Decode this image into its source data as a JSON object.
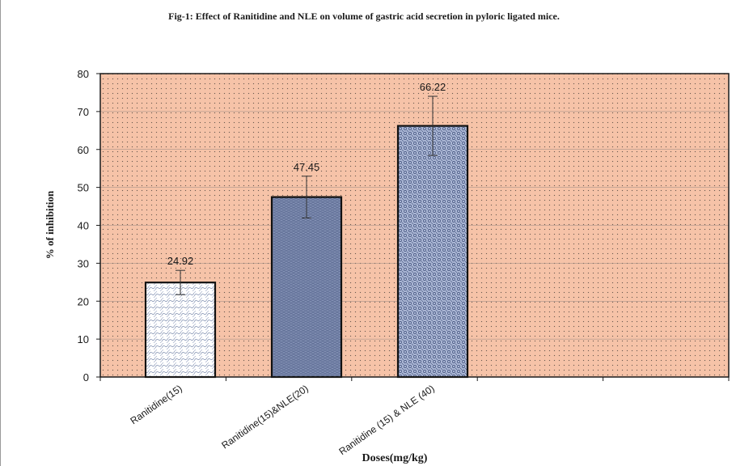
{
  "chart_data": {
    "type": "bar",
    "title": "Fig-1: Effect of Ranitidine and NLE on volume of gastric acid secretion in pyloric ligated mice.",
    "xlabel": "Doses(mg/kg)",
    "ylabel": "% of inhibition",
    "categories": [
      "Ranitidine(15)",
      "Ranitidine(15)&NLE(20)",
      "Ranitidine (15) & NLE (40)"
    ],
    "values": [
      24.92,
      47.45,
      66.22
    ],
    "value_labels": [
      "24.92",
      "47.45",
      "66.22"
    ],
    "error_bars": [
      3.2,
      5.5,
      7.8
    ],
    "ylim": [
      0,
      80
    ],
    "yticks": [
      0,
      10,
      20,
      30,
      40,
      50,
      60,
      70,
      80
    ],
    "grid": true,
    "legend": "none",
    "colors": {
      "plot_background": "#f6c3a8",
      "plot_dots": "#6b5a50",
      "bar_fills": [
        "#ffffff",
        "#8d9bbd",
        "#a9b5d3"
      ],
      "bar_pattern": "#3f4f7a",
      "grid": "#9a8a82"
    }
  }
}
